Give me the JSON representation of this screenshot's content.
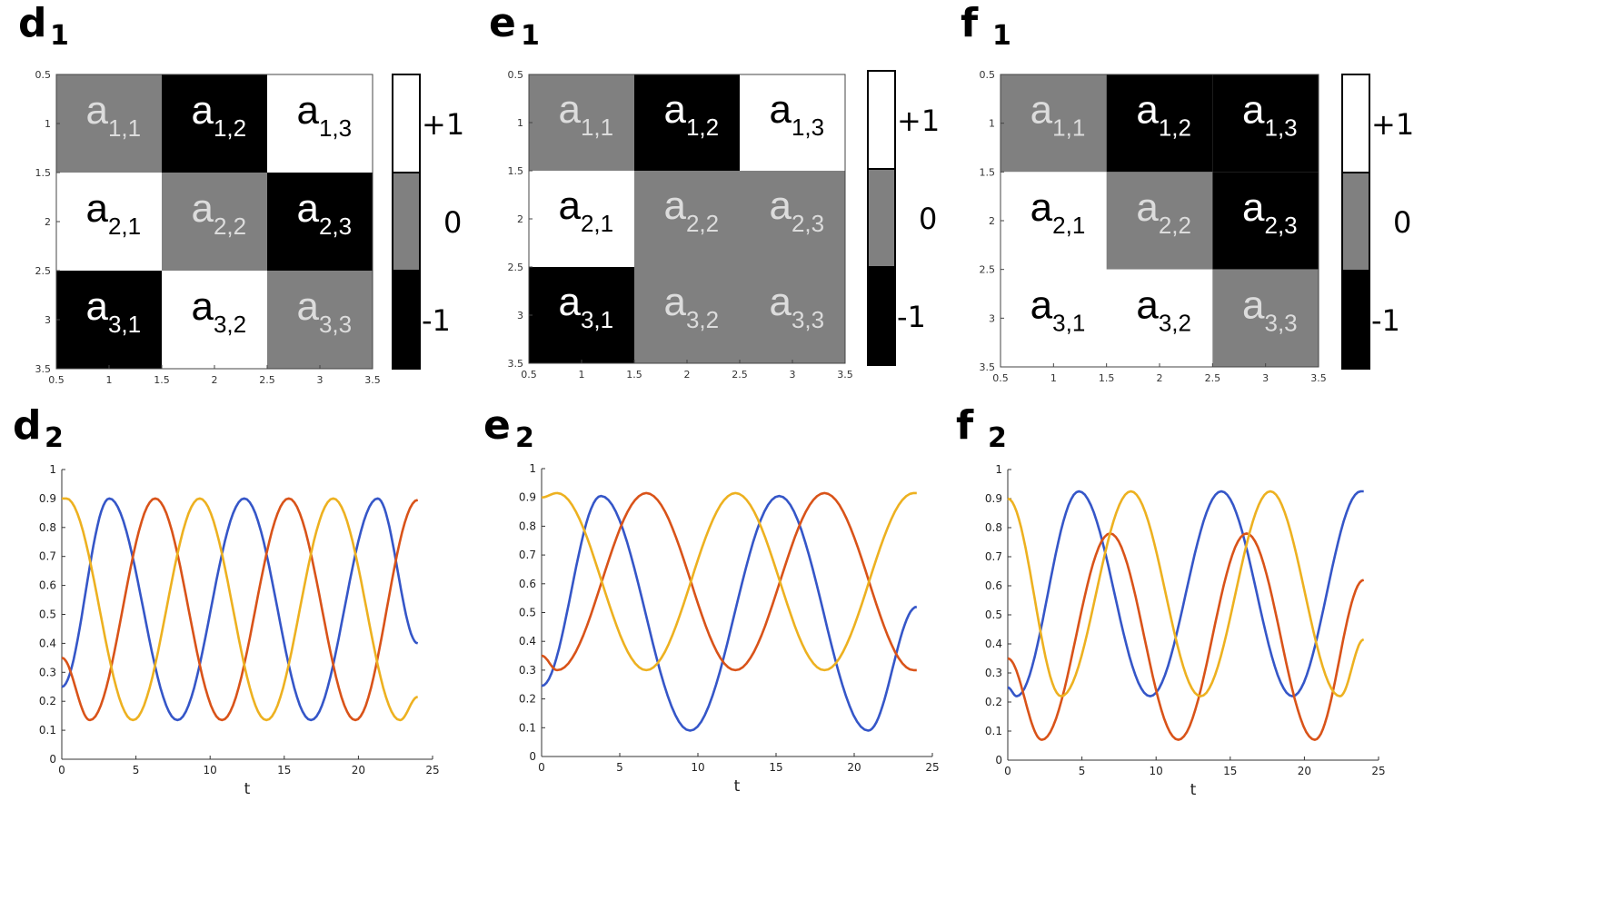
{
  "chart_data": [
    {
      "id": "d1",
      "type": "heatmap",
      "panel": "d",
      "sub": "1",
      "x_ticks": [
        "0.5",
        "1",
        "1.5",
        "2",
        "2.5",
        "3",
        "3.5"
      ],
      "y_ticks": [
        "0.5",
        "1",
        "1.5",
        "2",
        "2.5",
        "3",
        "3.5"
      ],
      "xlim": [
        0.5,
        3.5
      ],
      "ylim": [
        0.5,
        3.5
      ],
      "values": [
        [
          0,
          -1,
          1
        ],
        [
          1,
          0,
          -1
        ],
        [
          -1,
          1,
          0
        ]
      ],
      "cell_labels": [
        [
          "1,1",
          "1,2",
          "1,3"
        ],
        [
          "2,1",
          "2,2",
          "2,3"
        ],
        [
          "3,1",
          "3,2",
          "3,3"
        ]
      ],
      "cell_letter": "a",
      "colorbar": {
        "labels": [
          "+1",
          "0",
          "-1"
        ],
        "colors": [
          "#ffffff",
          "#808080",
          "#000000"
        ]
      }
    },
    {
      "id": "e1",
      "type": "heatmap",
      "panel": "e",
      "sub": "1",
      "x_ticks": [
        "0.5",
        "1",
        "1.5",
        "2",
        "2.5",
        "3",
        "3.5"
      ],
      "y_ticks": [
        "0.5",
        "1",
        "1.5",
        "2",
        "2.5",
        "3",
        "3.5"
      ],
      "xlim": [
        0.5,
        3.5
      ],
      "ylim": [
        0.5,
        3.5
      ],
      "values": [
        [
          0,
          -1,
          1
        ],
        [
          1,
          0,
          0
        ],
        [
          -1,
          0,
          0
        ]
      ],
      "cell_labels": [
        [
          "1,1",
          "1,2",
          "1,3"
        ],
        [
          "2,1",
          "2,2",
          "2,3"
        ],
        [
          "3,1",
          "3,2",
          "3,3"
        ]
      ],
      "cell_letter": "a",
      "colorbar": {
        "labels": [
          "+1",
          "0",
          "-1"
        ],
        "colors": [
          "#ffffff",
          "#808080",
          "#000000"
        ]
      }
    },
    {
      "id": "f1",
      "type": "heatmap",
      "panel": "f",
      "sub": "1",
      "x_ticks": [
        "0.5",
        "1",
        "1.5",
        "2",
        "2.5",
        "3",
        "3.5"
      ],
      "y_ticks": [
        "0.5",
        "1",
        "1.5",
        "2",
        "2.5",
        "3",
        "3.5"
      ],
      "xlim": [
        0.5,
        3.5
      ],
      "ylim": [
        0.5,
        3.5
      ],
      "values": [
        [
          0,
          -1,
          -1
        ],
        [
          1,
          0,
          -1
        ],
        [
          1,
          1,
          0
        ]
      ],
      "cell_labels": [
        [
          "1,1",
          "1,2",
          "1,3"
        ],
        [
          "2,1",
          "2,2",
          "2,3"
        ],
        [
          "3,1",
          "3,2",
          "3,3"
        ]
      ],
      "cell_letter": "a",
      "colorbar": {
        "labels": [
          "+1",
          "0",
          "-1"
        ],
        "colors": [
          "#ffffff",
          "#808080",
          "#000000"
        ]
      }
    },
    {
      "id": "d2",
      "type": "line",
      "panel": "d",
      "sub": "2",
      "xlabel": "t",
      "xlim": [
        0,
        25
      ],
      "ylim": [
        0,
        1
      ],
      "x_ticks": [
        "0",
        "5",
        "10",
        "15",
        "20",
        "25"
      ],
      "y_ticks": [
        "0",
        "0.1",
        "0.2",
        "0.3",
        "0.4",
        "0.5",
        "0.6",
        "0.7",
        "0.8",
        "0.9",
        "1"
      ],
      "t_end": 24,
      "series": [
        {
          "color": "#3556c8",
          "points": [
            [
              0,
              0.25
            ],
            [
              3.2,
              0.9
            ],
            [
              7.8,
              0.135
            ],
            [
              12.3,
              0.9
            ],
            [
              16.8,
              0.135
            ],
            [
              21.3,
              0.9
            ],
            [
              24,
              0.4
            ]
          ]
        },
        {
          "color": "#d95319",
          "points": [
            [
              0,
              0.35
            ],
            [
              1.9,
              0.135
            ],
            [
              6.3,
              0.9
            ],
            [
              10.8,
              0.135
            ],
            [
              15.3,
              0.9
            ],
            [
              19.8,
              0.135
            ],
            [
              24,
              0.895
            ]
          ]
        },
        {
          "color": "#edb120",
          "points": [
            [
              0,
              0.9
            ],
            [
              0.3,
              0.9
            ],
            [
              4.8,
              0.135
            ],
            [
              9.3,
              0.9
            ],
            [
              13.8,
              0.135
            ],
            [
              18.3,
              0.9
            ],
            [
              22.8,
              0.135
            ],
            [
              24,
              0.215
            ]
          ]
        }
      ]
    },
    {
      "id": "e2",
      "type": "line",
      "panel": "e",
      "sub": "2",
      "xlabel": "t",
      "xlim": [
        0,
        25
      ],
      "ylim": [
        0,
        1
      ],
      "x_ticks": [
        "0",
        "5",
        "10",
        "15",
        "20",
        "25"
      ],
      "y_ticks": [
        "0",
        "0.1",
        "0.2",
        "0.3",
        "0.4",
        "0.5",
        "0.6",
        "0.7",
        "0.8",
        "0.9",
        "1"
      ],
      "t_end": 24,
      "series": [
        {
          "color": "#3556c8",
          "points": [
            [
              0,
              0.245
            ],
            [
              3.8,
              0.905
            ],
            [
              9.5,
              0.09
            ],
            [
              15.2,
              0.905
            ],
            [
              20.9,
              0.09
            ],
            [
              24,
              0.52
            ]
          ]
        },
        {
          "color": "#d95319",
          "points": [
            [
              0,
              0.35
            ],
            [
              1,
              0.3
            ],
            [
              6.7,
              0.915
            ],
            [
              12.4,
              0.3
            ],
            [
              18.1,
              0.915
            ],
            [
              23.8,
              0.3
            ],
            [
              24,
              0.3
            ]
          ]
        },
        {
          "color": "#edb120",
          "points": [
            [
              0,
              0.9
            ],
            [
              1,
              0.915
            ],
            [
              6.7,
              0.3
            ],
            [
              12.4,
              0.915
            ],
            [
              18.1,
              0.3
            ],
            [
              23.8,
              0.915
            ],
            [
              24,
              0.915
            ]
          ]
        }
      ]
    },
    {
      "id": "f2",
      "type": "line",
      "panel": "f",
      "sub": "2",
      "xlabel": "t",
      "xlim": [
        0,
        25
      ],
      "ylim": [
        0,
        1
      ],
      "x_ticks": [
        "0",
        "5",
        "10",
        "15",
        "20",
        "25"
      ],
      "y_ticks": [
        "0",
        "0.1",
        "0.2",
        "0.3",
        "0.4",
        "0.5",
        "0.6",
        "0.7",
        "0.8",
        "0.9",
        "1"
      ],
      "t_end": 24,
      "series": [
        {
          "color": "#3556c8",
          "points": [
            [
              0,
              0.25
            ],
            [
              0.6,
              0.22
            ],
            [
              4.8,
              0.925
            ],
            [
              9.6,
              0.22
            ],
            [
              14.4,
              0.925
            ],
            [
              19.2,
              0.22
            ],
            [
              23.8,
              0.925
            ],
            [
              24,
              0.925
            ]
          ]
        },
        {
          "color": "#d95319",
          "points": [
            [
              0,
              0.35
            ],
            [
              2.3,
              0.07
            ],
            [
              6.9,
              0.78
            ],
            [
              11.5,
              0.07
            ],
            [
              16.1,
              0.78
            ],
            [
              20.7,
              0.07
            ],
            [
              24,
              0.62
            ]
          ]
        },
        {
          "color": "#edb120",
          "points": [
            [
              0,
              0.9
            ],
            [
              3.6,
              0.22
            ],
            [
              8.3,
              0.925
            ],
            [
              13,
              0.22
            ],
            [
              17.7,
              0.925
            ],
            [
              22.4,
              0.22
            ],
            [
              24,
              0.415
            ]
          ]
        }
      ]
    }
  ]
}
